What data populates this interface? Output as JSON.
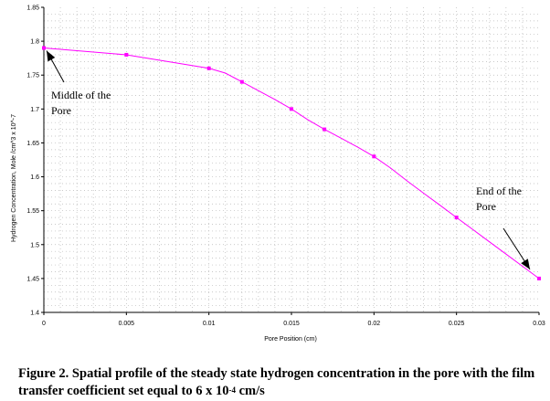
{
  "chart_data": {
    "type": "line",
    "title": "",
    "xlabel": "Pore Position (cm)",
    "ylabel": "Hydrogen Concentration, Mole /cm^3 x 10^-7",
    "xlim": [
      0,
      0.03
    ],
    "ylim": [
      1.4,
      1.85
    ],
    "x_ticks": [
      0,
      0.005,
      0.01,
      0.015,
      0.02,
      0.025,
      0.03
    ],
    "x_tick_labels": [
      "0",
      "0.005",
      "0.01",
      "0.015",
      "0.02",
      "0.025",
      "0.03"
    ],
    "y_ticks": [
      1.4,
      1.45,
      1.5,
      1.55,
      1.6,
      1.65,
      1.7,
      1.75,
      1.8,
      1.85
    ],
    "y_tick_labels": [
      "1.4",
      "1.45",
      "1.5",
      "1.55",
      "1.6",
      "1.65",
      "1.7",
      "1.75",
      "1.8",
      "1.85"
    ],
    "grid": true,
    "line_color": "#ff00ff",
    "line_x": [
      0,
      0.005,
      0.01,
      0.011,
      0.012,
      0.013,
      0.014,
      0.015,
      0.016,
      0.017,
      0.018,
      0.019,
      0.02,
      0.021,
      0.022,
      0.023,
      0.024,
      0.025,
      0.026,
      0.027,
      0.028,
      0.029,
      0.03
    ],
    "line_y": [
      1.79,
      1.78,
      1.76,
      1.753,
      1.74,
      1.727,
      1.714,
      1.7,
      1.684,
      1.67,
      1.657,
      1.644,
      1.63,
      1.613,
      1.594,
      1.576,
      1.558,
      1.54,
      1.522,
      1.504,
      1.486,
      1.468,
      1.45
    ],
    "markers_x": [
      0,
      0.005,
      0.01,
      0.012,
      0.015,
      0.017,
      0.02,
      0.025,
      0.03
    ],
    "markers_y": [
      1.79,
      1.78,
      1.76,
      1.74,
      1.7,
      1.67,
      1.63,
      1.54,
      1.45
    ],
    "annotations": [
      {
        "lines": [
          "Middle of the",
          "Pore"
        ],
        "x": 0,
        "y": 1.79
      },
      {
        "lines": [
          "End of the",
          "Pore"
        ],
        "x": 0.03,
        "y": 1.45
      }
    ]
  },
  "caption": {
    "prefix": "Figure 2.  Spatial profile of the steady state hydrogen concentration in the pore with the film transfer coefficient set equal to 6 x 10",
    "exponent": "-4",
    "suffix": " cm/s"
  }
}
